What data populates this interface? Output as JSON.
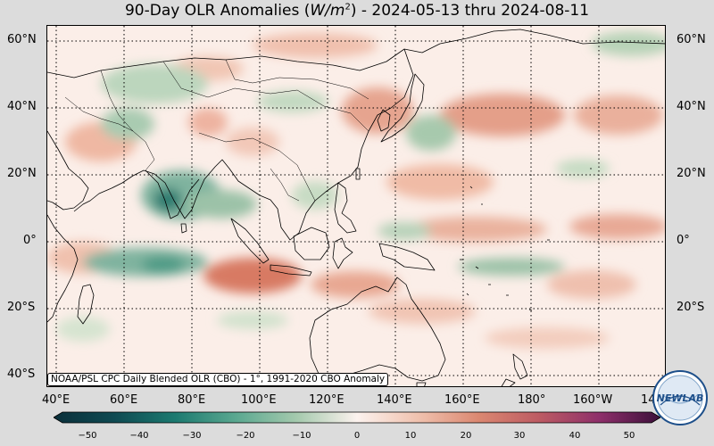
{
  "title": {
    "prefix": "90-Day OLR Anomalies (",
    "unit_base": "W/m",
    "unit_exp": "2",
    "suffix": ") - 2024-05-13 thru 2024-08-11"
  },
  "map": {
    "credit": "NOAA/PSL CPC Daily Blended OLR (CBO) - 1°, 1991-2020 CBO Anomaly",
    "lat_labels_left": [
      "60°N",
      "40°N",
      "20°N",
      "0°",
      "20°S",
      "40°S"
    ],
    "lat_labels_right": [
      "60°N",
      "40°N",
      "20°N",
      "0°",
      "20°S"
    ],
    "lon_labels": [
      "40°E",
      "60°E",
      "80°E",
      "100°E",
      "120°E",
      "140°E",
      "160°E",
      "180°",
      "160°W",
      "14"
    ],
    "colors": {
      "negative_strong": "#1e6b63",
      "negative_mid": "#3f9a86",
      "negative_light": "#a9cbb1",
      "neutral": "#fbeee8",
      "positive_light": "#f1c1ae",
      "positive_mid": "#dd8f77",
      "positive_strong": "#c9604d"
    }
  },
  "colorbar": {
    "ticks": [
      "−50",
      "−40",
      "−30",
      "−20",
      "−10",
      "0",
      "10",
      "20",
      "30",
      "40",
      "50"
    ],
    "min": -50,
    "max": 50
  },
  "logo": {
    "text": "NEWLAB"
  }
}
